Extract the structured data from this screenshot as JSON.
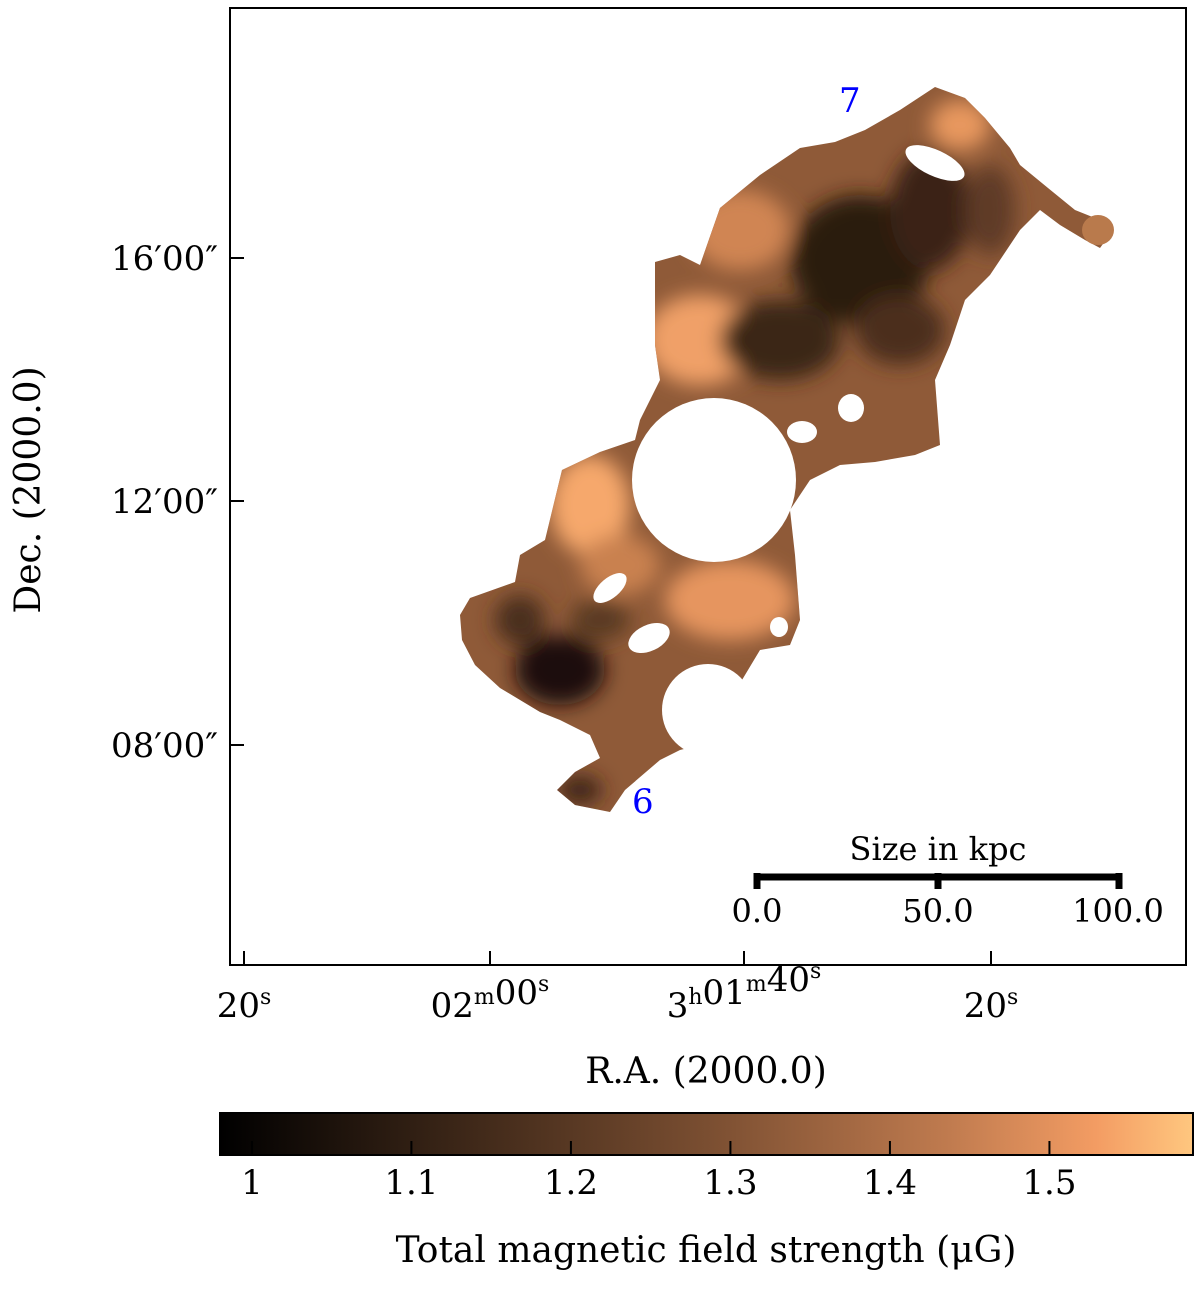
{
  "chart_data": {
    "type": "heatmap",
    "xlabel": "R.A. (2000.0)",
    "ylabel": "Dec. (2000.0)",
    "x_ticks": [
      {
        "main": "20",
        "sup": "s"
      },
      {
        "parts": [
          [
            "02",
            ""
          ],
          [
            "m",
            "sup"
          ],
          [
            "00",
            ""
          ],
          [
            "s",
            "sup"
          ]
        ]
      },
      {
        "parts": [
          [
            "3",
            ""
          ],
          [
            "h",
            "sup"
          ],
          [
            "01",
            ""
          ],
          [
            "m",
            "sup"
          ],
          [
            "40",
            ""
          ],
          [
            "s",
            "sup"
          ]
        ]
      },
      {
        "main": "20",
        "sup": "s"
      }
    ],
    "y_ticks": [
      "16′00″",
      "12′00″",
      "08′00″"
    ],
    "colorbar": {
      "label": "Total magnetic field strength (μG)",
      "ticks": [
        1,
        1.1,
        1.2,
        1.3,
        1.4,
        1.5
      ],
      "tick_labels": [
        "1",
        "1.1",
        "1.2",
        "1.3",
        "1.4",
        "1.5"
      ],
      "range": [
        0.98,
        1.59
      ],
      "colormap": "copper",
      "colors": [
        "#000000",
        "#3d2718",
        "#7a4e31",
        "#b8754a",
        "#f09a62",
        "#ffc77f"
      ]
    },
    "scale_bar": {
      "title": "Size in kpc",
      "ticks": [
        "0.0",
        "50.0",
        "100.0"
      ]
    },
    "region_labels": [
      {
        "text": "6",
        "color": "#0000ff"
      },
      {
        "text": "7",
        "color": "#0000ff"
      }
    ]
  }
}
